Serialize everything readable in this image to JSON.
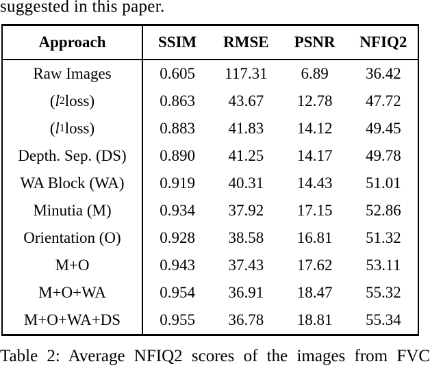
{
  "page": {
    "caption_top": "suggested in this paper.",
    "caption_bottom": "Table 2: Average NFIQ2 scores of the images from FVC"
  },
  "table": {
    "columns": [
      "Approach",
      "SSIM",
      "RMSE",
      "PSNR",
      "NFIQ2"
    ],
    "rows": [
      {
        "approach": "Raw Images",
        "values": [
          "0.605",
          "117.31",
          "6.89",
          "36.42"
        ]
      },
      {
        "approach": "(<i>l</i><sub>2</sub> loss)",
        "values": [
          "0.863",
          "43.67",
          "12.78",
          "47.72"
        ]
      },
      {
        "approach": "(<i>l</i><sub>1</sub> loss)",
        "values": [
          "0.883",
          "41.83",
          "14.12",
          "49.45"
        ]
      },
      {
        "approach": "Depth. Sep. (DS)",
        "values": [
          "0.890",
          "41.25",
          "14.17",
          "49.78"
        ]
      },
      {
        "approach": "WA Block (WA)",
        "values": [
          "0.919",
          "40.31",
          "14.43",
          "51.01"
        ]
      },
      {
        "approach": "Minutia (M)",
        "values": [
          "0.934",
          "37.92",
          "17.15",
          "52.86"
        ]
      },
      {
        "approach": "Orientation (O)",
        "values": [
          "0.928",
          "38.58",
          "16.81",
          "51.32"
        ]
      },
      {
        "approach": "M+O",
        "values": [
          "0.943",
          "37.43",
          "17.62",
          "53.11"
        ]
      },
      {
        "approach": "M+O+WA",
        "values": [
          "0.954",
          "36.91",
          "18.47",
          "55.32"
        ]
      },
      {
        "approach": "M+O+WA+DS",
        "values": [
          "0.955",
          "36.78",
          "18.81",
          "55.34"
        ]
      }
    ]
  }
}
